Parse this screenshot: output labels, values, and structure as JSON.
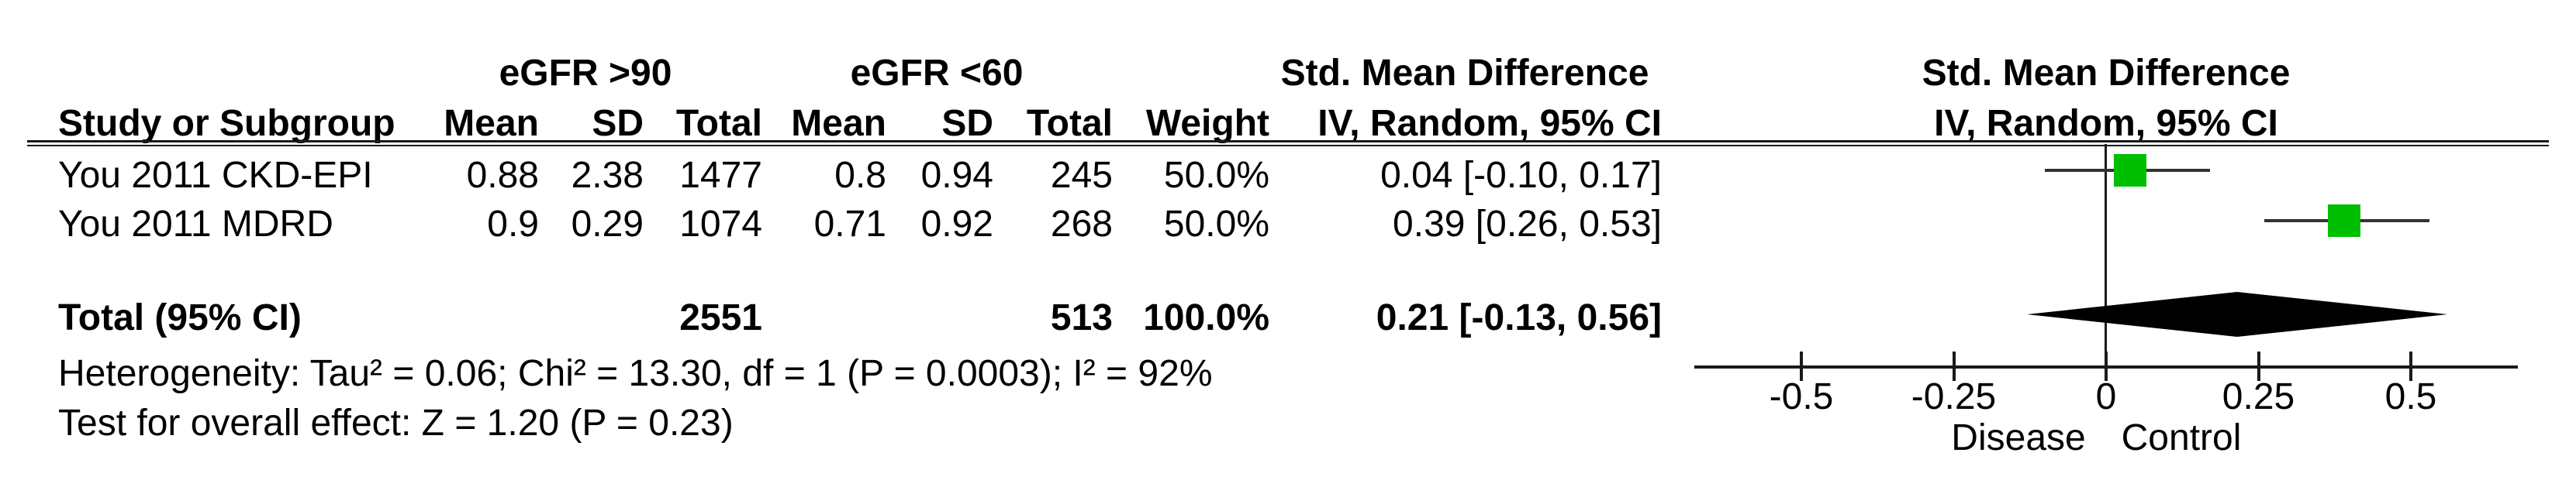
{
  "table": {
    "group1_header": "eGFR >90",
    "group2_header": "eGFR <60",
    "effect_col_header_line1": "Std. Mean Difference",
    "effect_col_header_line2": "IV, Random, 95% CI",
    "plot_header_line1": "Std. Mean Difference",
    "plot_header_line2": "IV, Random, 95% CI",
    "col_study": "Study or Subgroup",
    "col_mean1": "Mean",
    "col_sd1": "SD",
    "col_total1": "Total",
    "col_mean2": "Mean",
    "col_sd2": "SD",
    "col_total2": "Total",
    "col_weight": "Weight",
    "rows": [
      {
        "study": "You 2011 CKD-EPI",
        "mean1": "0.88",
        "sd1": "2.38",
        "total1": "1477",
        "mean2": "0.8",
        "sd2": "0.94",
        "total2": "245",
        "weight": "50.0%",
        "ci": "0.04 [-0.10, 0.17]"
      },
      {
        "study": "You 2011 MDRD",
        "mean1": "0.9",
        "sd1": "0.29",
        "total1": "1074",
        "mean2": "0.71",
        "sd2": "0.92",
        "total2": "268",
        "weight": "50.0%",
        "ci": "0.39 [0.26, 0.53]"
      }
    ],
    "total_row": {
      "label": "Total (95% CI)",
      "total1": "2551",
      "total2": "513",
      "weight": "100.0%",
      "ci": "0.21 [-0.13, 0.56]"
    },
    "heterogeneity": "Heterogeneity: Tau² = 0.06; Chi² = 13.30, df = 1 (P = 0.0003); I² = 92%",
    "overall_effect": "Test for overall effect: Z = 1.20 (P = 0.23)"
  },
  "chart_data": {
    "type": "forest",
    "effect_measure": "Std. Mean Difference",
    "method": "IV, Random, 95% CI",
    "studies": [
      {
        "name": "You 2011 CKD-EPI",
        "estimate": 0.04,
        "ci_low": -0.1,
        "ci_high": 0.17,
        "weight_pct": 50.0
      },
      {
        "name": "You 2011 MDRD",
        "estimate": 0.39,
        "ci_low": 0.26,
        "ci_high": 0.53,
        "weight_pct": 50.0
      }
    ],
    "overall": {
      "estimate": 0.21,
      "ci_low": -0.13,
      "ci_high": 0.56
    },
    "axis": {
      "ticks": [
        -0.5,
        -0.25,
        0,
        0.25,
        0.5
      ],
      "tick_labels": [
        "-0.5",
        "-0.25",
        "0",
        "0.25",
        "0.5"
      ],
      "xlim": [
        -0.675,
        0.675
      ],
      "zero_line": 0,
      "label_left": "Disease",
      "label_right": "Control"
    },
    "colors": {
      "marker_green": "#00BE00",
      "line_dark": "#333333",
      "diamond_black": "#000000",
      "text": "#000000"
    }
  }
}
